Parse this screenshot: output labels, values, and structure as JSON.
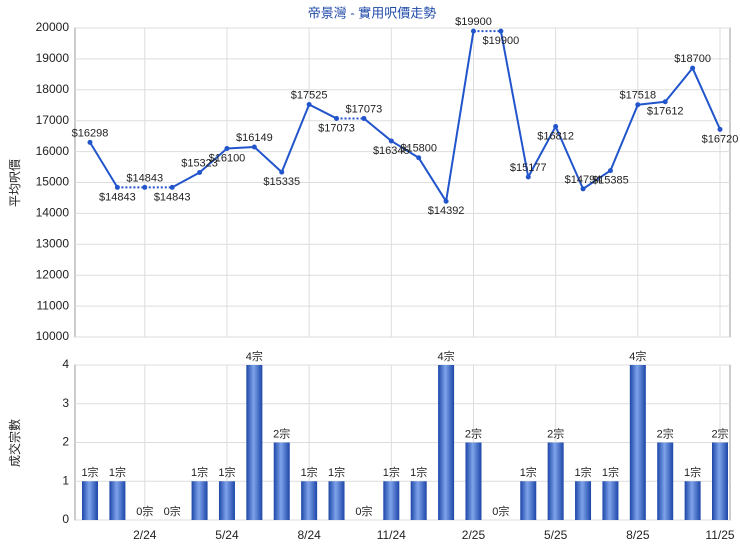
{
  "chart_data": [
    {
      "type": "line",
      "title": "帝景灣 - 實用呎價走勢",
      "y_label": "平均呎價",
      "color": "#2255cc",
      "values": [
        16298,
        14843,
        14843,
        14843,
        15323,
        16100,
        16149,
        15335,
        17525,
        17073,
        17073,
        16345,
        15800,
        14392,
        19900,
        19900,
        15177,
        16812,
        14794,
        15385,
        17518,
        17612,
        18700,
        16720
      ],
      "value_labels": [
        "$16298",
        "$14843",
        "$14843",
        "$14843",
        "$15323",
        "$16100",
        "$16149",
        "$15335",
        "$17525",
        "$17073",
        "$17073",
        "$16345",
        "$15800",
        "$14392",
        "$19900",
        "$19900",
        "$15177",
        "$16812",
        "$14794",
        "$15385",
        "$17518",
        "$17612",
        "$18700",
        "$16720"
      ],
      "ylim": [
        10000,
        20000
      ],
      "yticks": [
        10000,
        11000,
        12000,
        13000,
        14000,
        15000,
        16000,
        17000,
        18000,
        19000,
        20000
      ],
      "grid": true
    },
    {
      "type": "bar",
      "y_label": "成交宗數",
      "color": "#2a5bc4",
      "categories": [
        null,
        null,
        "2/24",
        null,
        null,
        "5/24",
        null,
        null,
        "8/24",
        null,
        null,
        "11/24",
        null,
        null,
        "2/25",
        null,
        null,
        "5/25",
        null,
        null,
        "8/25",
        null,
        null,
        "11/25"
      ],
      "values": [
        1,
        1,
        0,
        0,
        1,
        1,
        4,
        2,
        1,
        1,
        0,
        1,
        1,
        4,
        2,
        0,
        1,
        2,
        1,
        1,
        4,
        2,
        1,
        2
      ],
      "value_labels": [
        "1宗",
        "1宗",
        "0宗",
        "0宗",
        "1宗",
        "1宗",
        "4宗",
        "2宗",
        "1宗",
        "1宗",
        "0宗",
        "1宗",
        "1宗",
        "4宗",
        "2宗",
        "0宗",
        "1宗",
        "2宗",
        "1宗",
        "1宗",
        "4宗",
        "2宗",
        "1宗",
        "2宗"
      ],
      "ylim": [
        0,
        4
      ],
      "yticks": [
        0,
        1,
        2,
        3,
        4
      ],
      "grid": true
    }
  ]
}
